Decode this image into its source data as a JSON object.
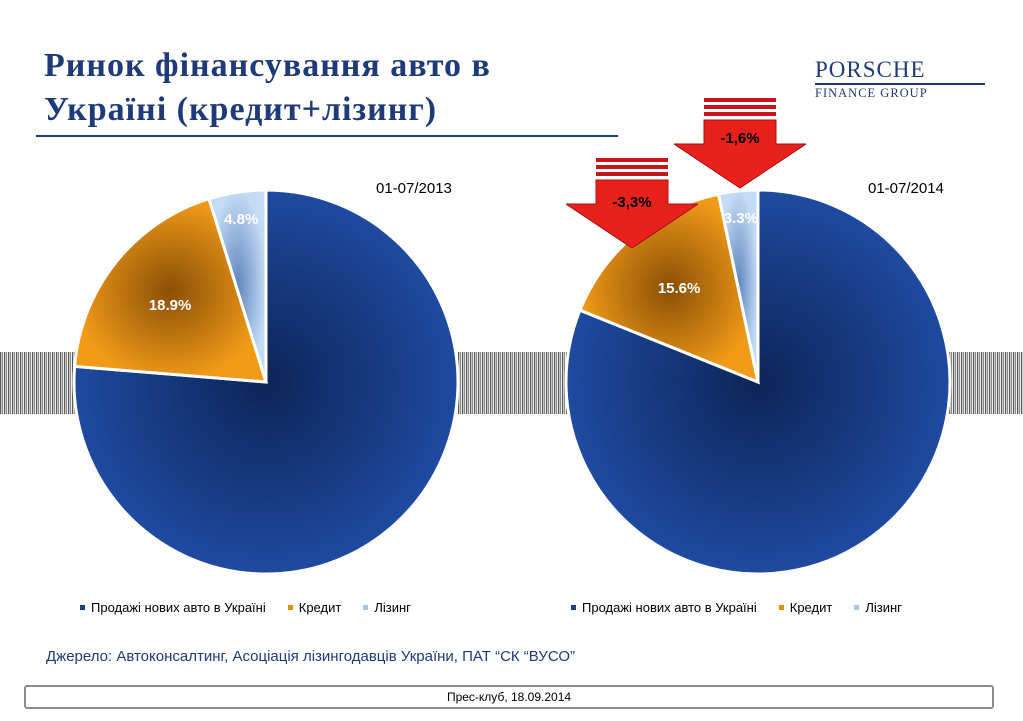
{
  "title": "Ринок фінансування авто в Україні (кредит+лізинг)",
  "logo": {
    "main": "PORSCHE",
    "sub": "FINANCE GROUP"
  },
  "colors": {
    "sales": "#1e3f8a",
    "credit": "#e8900e",
    "leasing": "#a9c6ea",
    "arrow": "#e8211c",
    "title": "#1f3a78"
  },
  "legend": [
    "Продажі нових авто в Україні",
    "Кредит",
    "Лізинг"
  ],
  "chart_data": [
    {
      "type": "pie",
      "title": "01-07/2013",
      "categories": [
        "Продажі нових авто в Україні",
        "Кредит",
        "Лізинг"
      ],
      "values": [
        76.3,
        18.9,
        4.8
      ],
      "data_labels": [
        "",
        "18.9%",
        "4.8%"
      ]
    },
    {
      "type": "pie",
      "title": "01-07/2014",
      "categories": [
        "Продажі нових авто в Україні",
        "Кредит",
        "Лізинг"
      ],
      "values": [
        81.1,
        15.6,
        3.3
      ],
      "data_labels": [
        "",
        "15.6%",
        "3.3%"
      ],
      "annotations": [
        "-3,3%",
        "-1,6%"
      ]
    }
  ],
  "source": "Джерело: Автоконсалтинг, Асоціація лізингодавців України, ПАТ “СК “ВУСО”",
  "footer": "Прес-клуб, 18.09.2014"
}
